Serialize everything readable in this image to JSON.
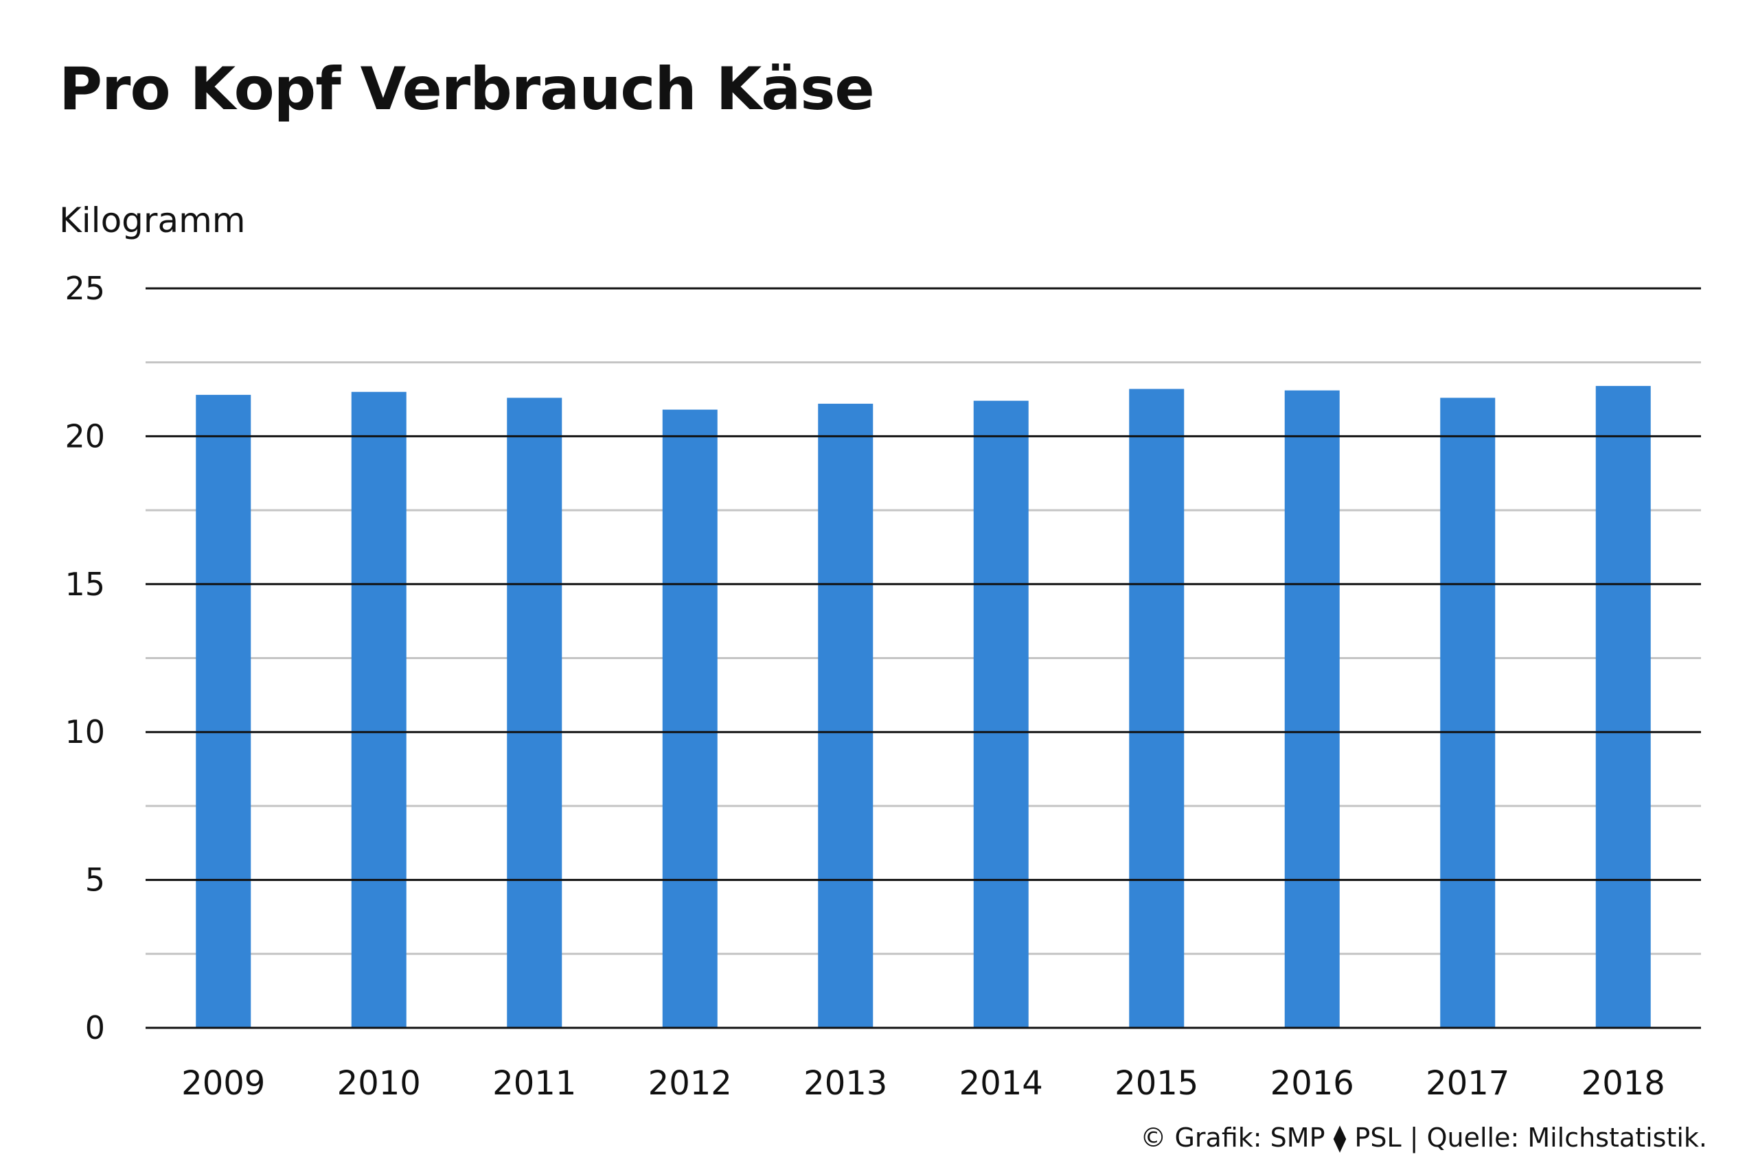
{
  "chart_data": {
    "type": "bar",
    "title": "Pro Kopf Verbrauch Käse",
    "ylabel": "Kilogramm",
    "xlabel": "",
    "categories": [
      "2009",
      "2010",
      "2011",
      "2012",
      "2013",
      "2014",
      "2015",
      "2016",
      "2017",
      "2018"
    ],
    "values": [
      21.4,
      21.5,
      21.3,
      20.9,
      21.1,
      21.2,
      21.6,
      21.55,
      21.3,
      21.7
    ],
    "ylim": [
      0,
      25
    ],
    "yticks": [
      0,
      5,
      10,
      15,
      20,
      25
    ],
    "minor_gridlines": [
      2.5,
      7.5,
      12.5,
      17.5,
      22.5
    ],
    "grid": true,
    "bar_color": "#3485d6",
    "major_grid_color": "#111111",
    "minor_grid_color": "#c4c4c4"
  },
  "footer": {
    "source": "© Grafik: SMP ⧫ PSL | Quelle: Milchstatistik."
  }
}
